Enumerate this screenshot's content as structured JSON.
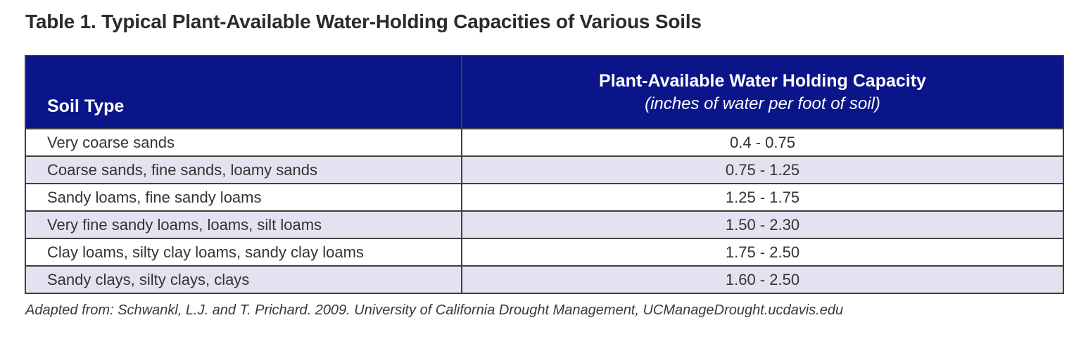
{
  "title": "Table 1. Typical Plant-Available Water-Holding Capacities of Various Soils",
  "table": {
    "columns": {
      "soil_type_label": "Soil Type",
      "capacity_label_line1": "Plant-Available Water Holding Capacity",
      "capacity_label_line2": "(inches of water per foot of soil)"
    },
    "rows": [
      {
        "soil_type": "Very coarse sands",
        "capacity": "0.4 - 0.75"
      },
      {
        "soil_type": "Coarse sands, fine sands, loamy sands",
        "capacity": "0.75 - 1.25"
      },
      {
        "soil_type": "Sandy loams, fine sandy loams",
        "capacity": "1.25 - 1.75"
      },
      {
        "soil_type": "Very fine sandy loams, loams, silt loams",
        "capacity": "1.50 - 2.30"
      },
      {
        "soil_type": "Clay loams, silty clay loams, sandy clay loams",
        "capacity": "1.75 - 2.50"
      },
      {
        "soil_type": "Sandy clays, silty clays, clays",
        "capacity": "1.60 - 2.50"
      }
    ]
  },
  "footer": {
    "source_note": "Adapted from: Schwankl, L.J. and T. Prichard. 2009. University of California Drought Management, UCManageDrought.ucdavis.edu"
  },
  "colors": {
    "header_bg": "#0a1589",
    "row_alt_bg": "#e4e2f0",
    "border": "#3f3f3f",
    "body_text": "#333333",
    "header_text": "#ffffff"
  }
}
